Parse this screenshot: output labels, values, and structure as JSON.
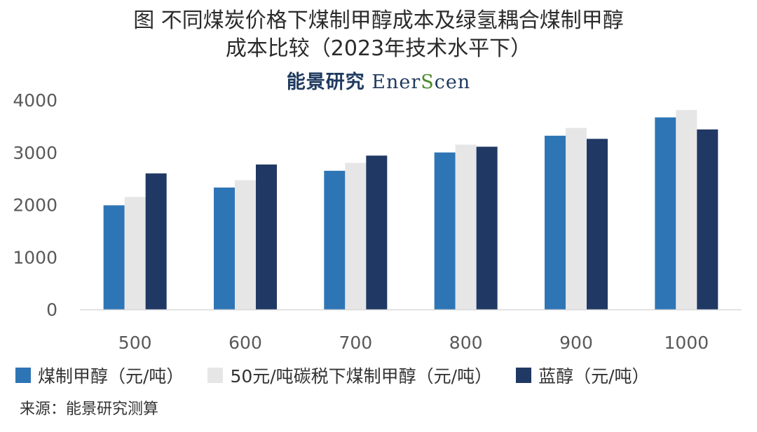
{
  "title_lines": [
    "图  不同煤炭价格下煤制甲醇成本及绿氢耦合煤制甲醇",
    "成本比较（2023年技术水平下）"
  ],
  "brand": {
    "cn": "能景研究",
    "en_prefix": "Ener",
    "en_s": "S",
    "en_suffix": "cen"
  },
  "source": "来源：能景研究测算",
  "chart_data": {
    "type": "bar",
    "title": "图  不同煤炭价格下煤制甲醇成本及绿氢耦合煤制甲醇成本比较（2023年技术水平下）",
    "categories": [
      "500",
      "600",
      "700",
      "800",
      "900",
      "1000"
    ],
    "series": [
      {
        "name": "煤制甲醇（元/吨）",
        "color": "#2e75b6",
        "values": [
          1990,
          2330,
          2650,
          3000,
          3320,
          3670
        ]
      },
      {
        "name": "50元/吨碳税下煤制甲醇（元/吨）",
        "color": "#e7e6e6",
        "values": [
          2150,
          2470,
          2800,
          3150,
          3470,
          3810
        ]
      },
      {
        "name": "蓝醇（元/吨）",
        "color": "#203864",
        "values": [
          2600,
          2770,
          2940,
          3110,
          3260,
          3440
        ]
      }
    ],
    "yticks": [
      "0",
      "1000",
      "2000",
      "3000",
      "4000"
    ],
    "ylim": [
      0,
      4000
    ],
    "xlabel": "",
    "ylabel": "",
    "grid": false,
    "legend_position": "bottom"
  }
}
